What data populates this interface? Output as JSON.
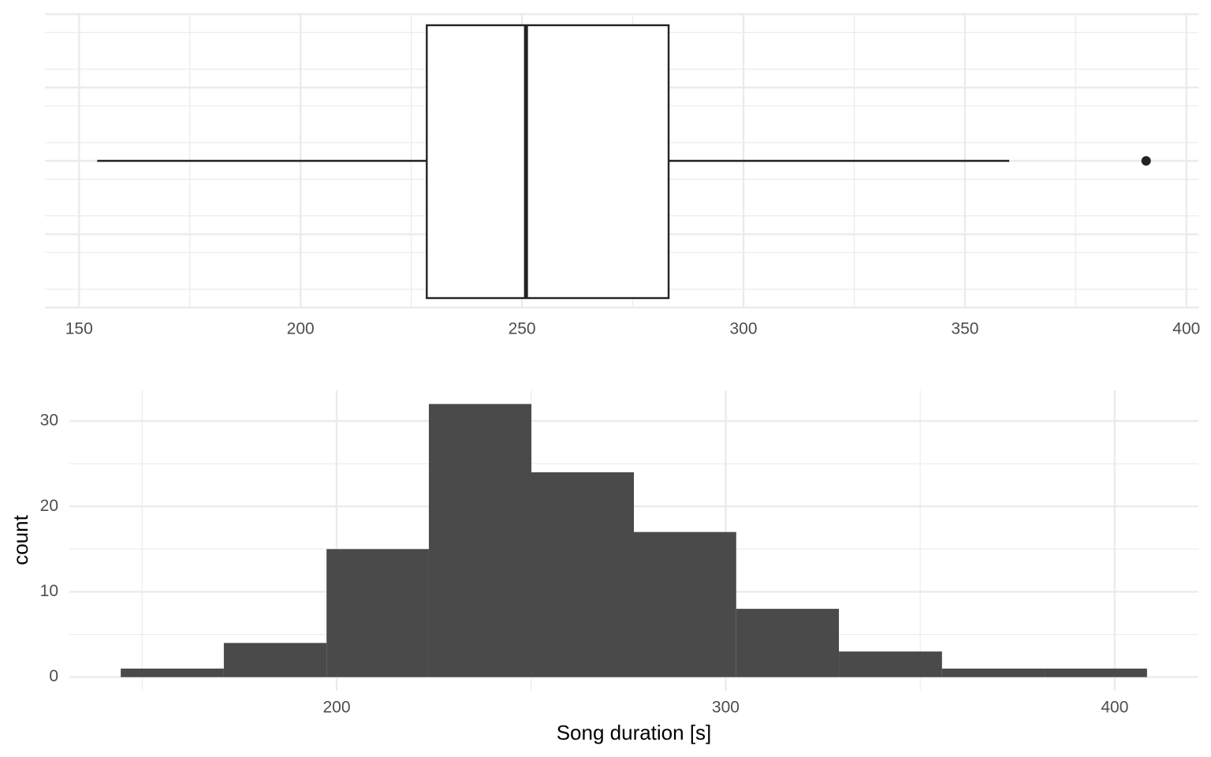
{
  "chart_data": [
    {
      "type": "boxplot",
      "min": 154.1,
      "q1": 228.5,
      "median": 250.9,
      "q3": 283.1,
      "max": 360,
      "outliers": [
        390.9
      ],
      "xlim": [
        142.3,
        402.7
      ],
      "xticks": [
        150,
        200,
        250,
        300,
        350,
        400
      ],
      "grid": true
    },
    {
      "type": "histogram",
      "bins": [
        144.5,
        171.0,
        197.4,
        223.7,
        250.05,
        276.4,
        302.7,
        329.1,
        355.6,
        382.0,
        408.3
      ],
      "counts": [
        1,
        4,
        15,
        32,
        24,
        17,
        8,
        3,
        1,
        1
      ],
      "color": "#4a4a4a",
      "xlim": [
        131.3,
        421.5
      ],
      "xticks": [
        200,
        300,
        400
      ],
      "ylim": [
        -1.6,
        33.6
      ],
      "yticks": [
        0,
        10,
        20,
        30
      ],
      "grid": true,
      "xlabel": "Song duration [s]",
      "ylabel": "count"
    }
  ]
}
